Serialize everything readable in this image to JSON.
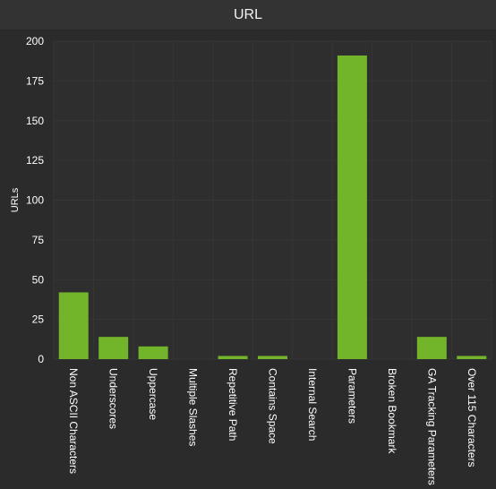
{
  "header": {
    "title": "URL"
  },
  "colors": {
    "background": "#2b2b2b",
    "title_bar": "#333333",
    "plot_background": "#2e2e2e",
    "grid": "#363636",
    "bar": "#72b52a",
    "text": "#ffffff"
  },
  "chart_data": {
    "type": "bar",
    "title": "URL",
    "xlabel": "",
    "ylabel": "URLs",
    "ylim": [
      0,
      200
    ],
    "yticks": [
      0,
      25,
      50,
      75,
      100,
      125,
      150,
      175,
      200
    ],
    "grid": true,
    "categories": [
      "Non ASCII Characters",
      "Underscores",
      "Uppercase",
      "Multiple Slashes",
      "Repetitive Path",
      "Contains Space",
      "Internal Search",
      "Parameters",
      "Broken Bookmark",
      "GA Tracking Parameters",
      "Over 115 Characters"
    ],
    "values": [
      42,
      14,
      8,
      0,
      2,
      2,
      0,
      191,
      0,
      14,
      2
    ]
  }
}
